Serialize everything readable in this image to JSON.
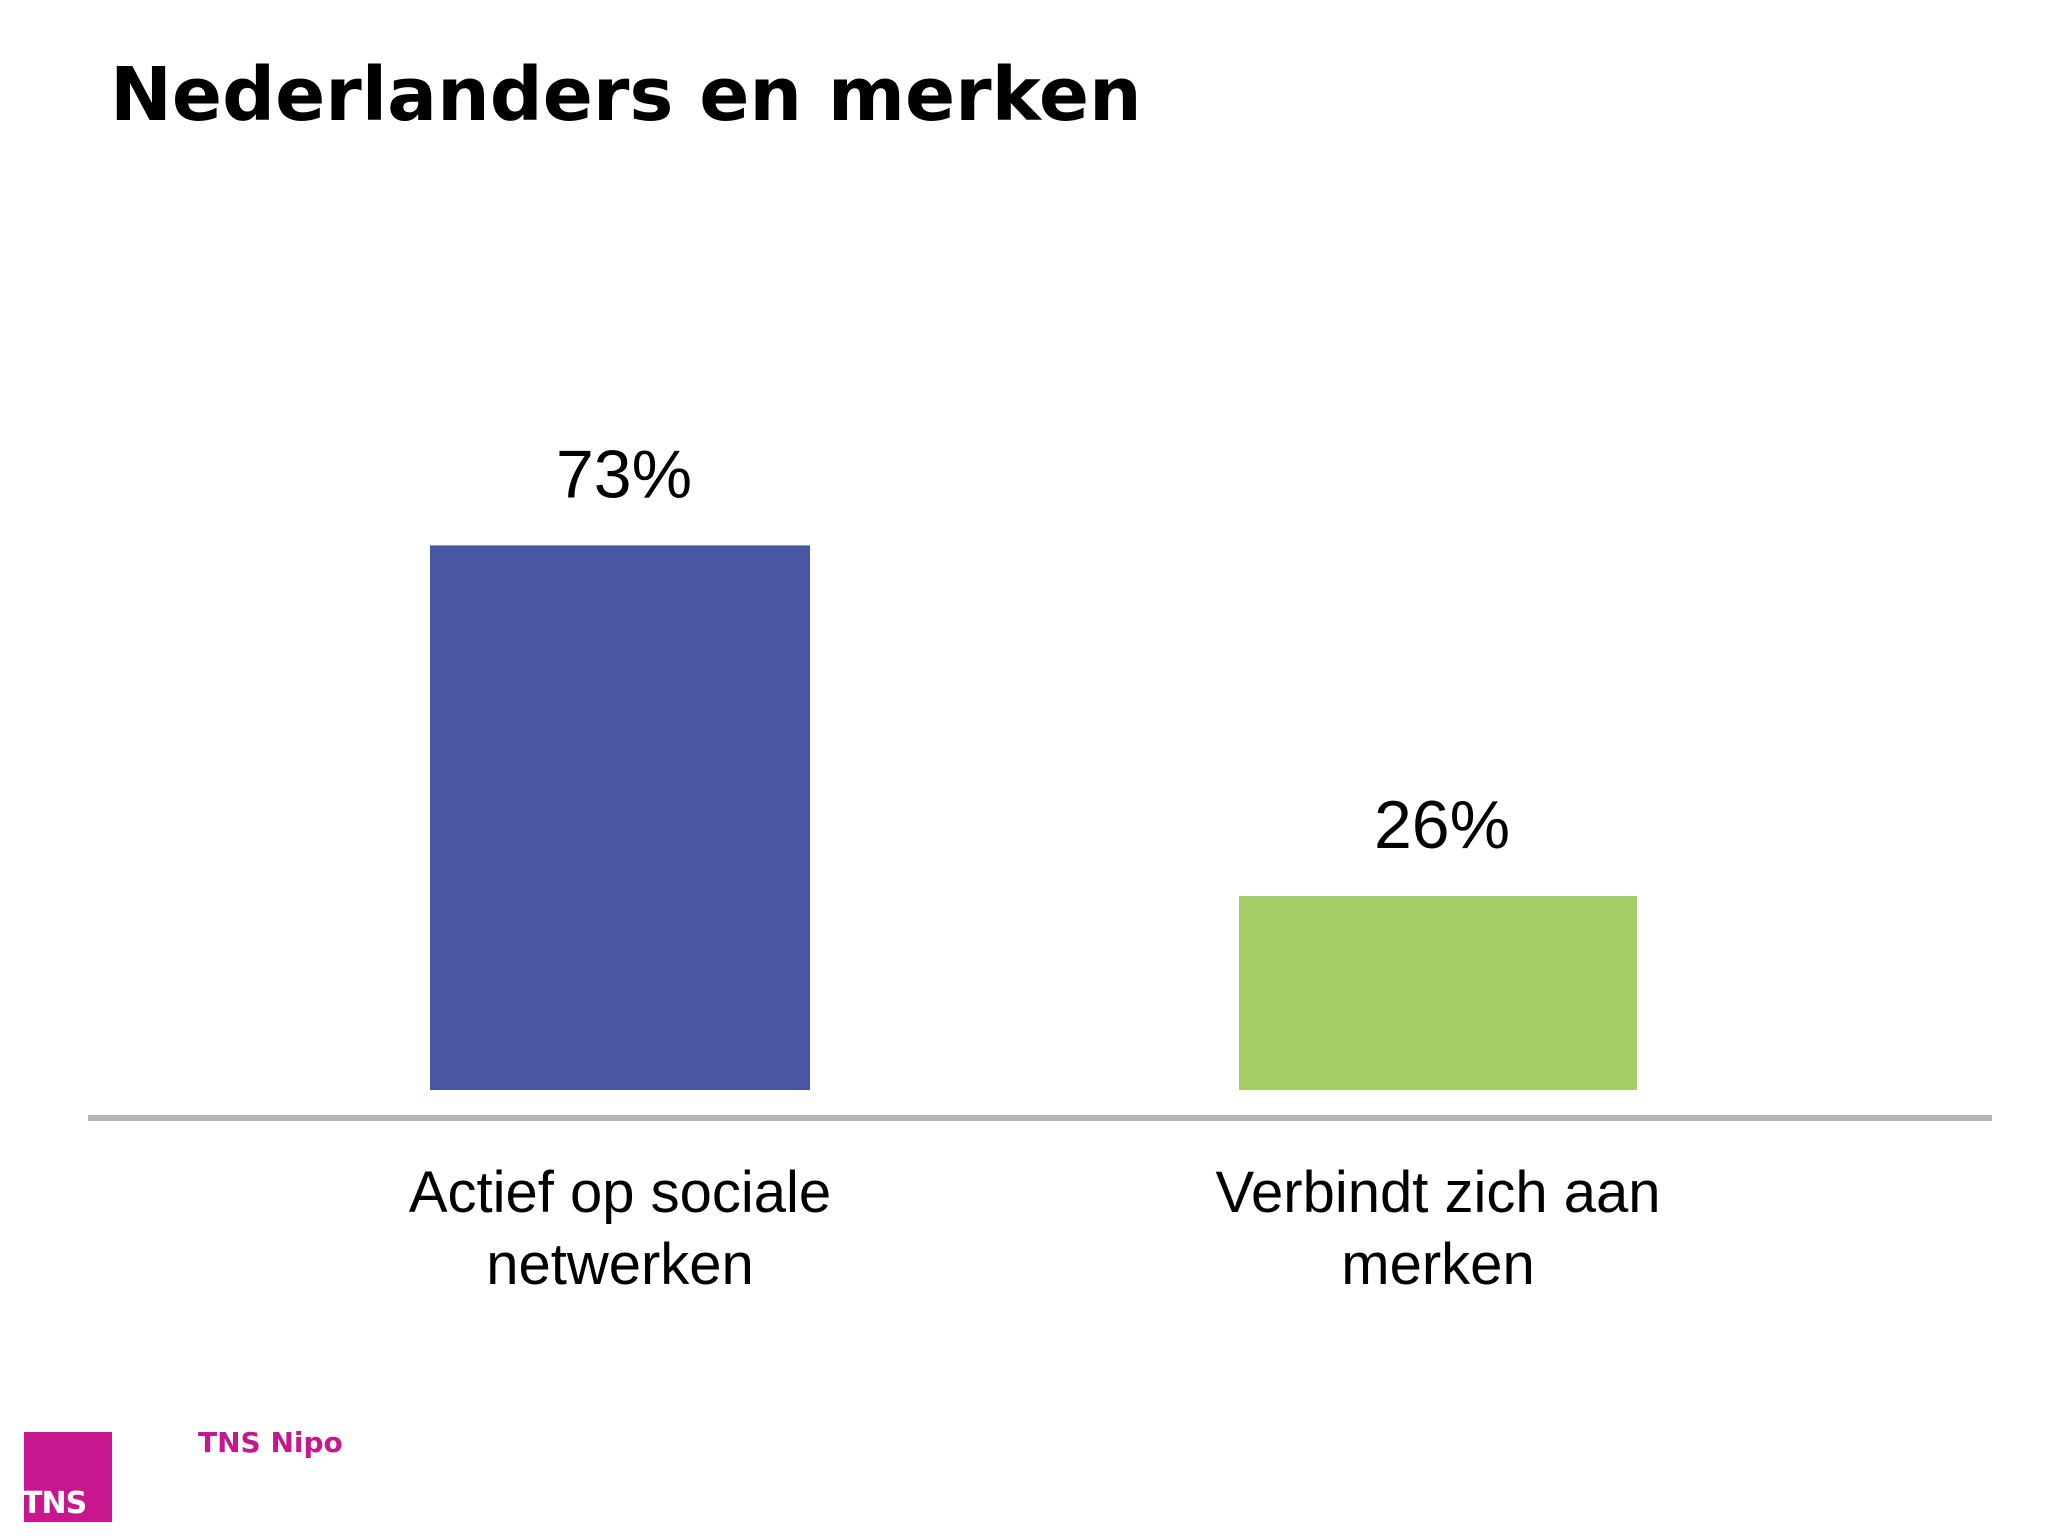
{
  "slide": {
    "title": "Nederlanders en merken"
  },
  "chart_data": {
    "type": "bar",
    "title": "",
    "categories": [
      [
        "Actief op sociale",
        "netwerken"
      ],
      [
        "Verbindt zich aan",
        "merken"
      ]
    ],
    "values": [
      73,
      26
    ],
    "value_labels": [
      "73%",
      "26%"
    ],
    "colors": [
      "#4856a3",
      "#a5cd66"
    ],
    "xlabel": "",
    "ylabel": "",
    "ylim": [
      0,
      100
    ],
    "grid": false,
    "legend": "none"
  },
  "footer": {
    "logo_box_text": "TNS",
    "brand_name": "TNS Nipo",
    "logo_color": "#c8168e"
  }
}
